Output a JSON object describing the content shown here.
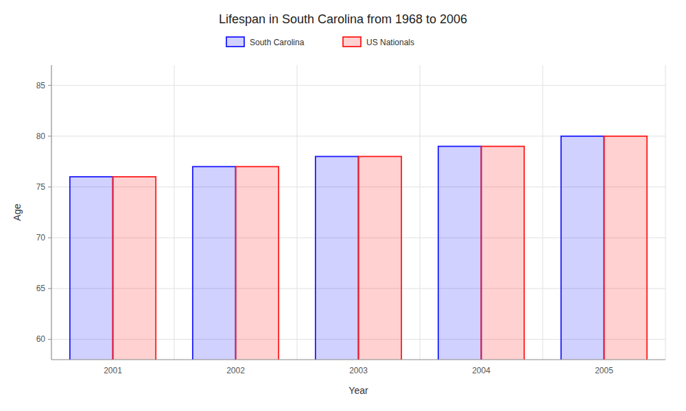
{
  "chart_data": {
    "type": "bar",
    "title": "Lifespan in South Carolina from 1968 to 2006",
    "x_label": "Year",
    "y_label": "Age",
    "categories": [
      "2001",
      "2002",
      "2003",
      "2004",
      "2005"
    ],
    "series": [
      {
        "name": "South Carolina",
        "color": "#1a1aff",
        "values": [
          76,
          77,
          78,
          79,
          80
        ]
      },
      {
        "name": "US Nationals",
        "color": "#ff1a1a",
        "values": [
          76,
          77,
          78,
          79,
          80
        ]
      }
    ],
    "ylim": [
      58,
      87
    ],
    "yticks": [
      60,
      65,
      70,
      75,
      80,
      85
    ],
    "grid": true,
    "legend": "top"
  }
}
